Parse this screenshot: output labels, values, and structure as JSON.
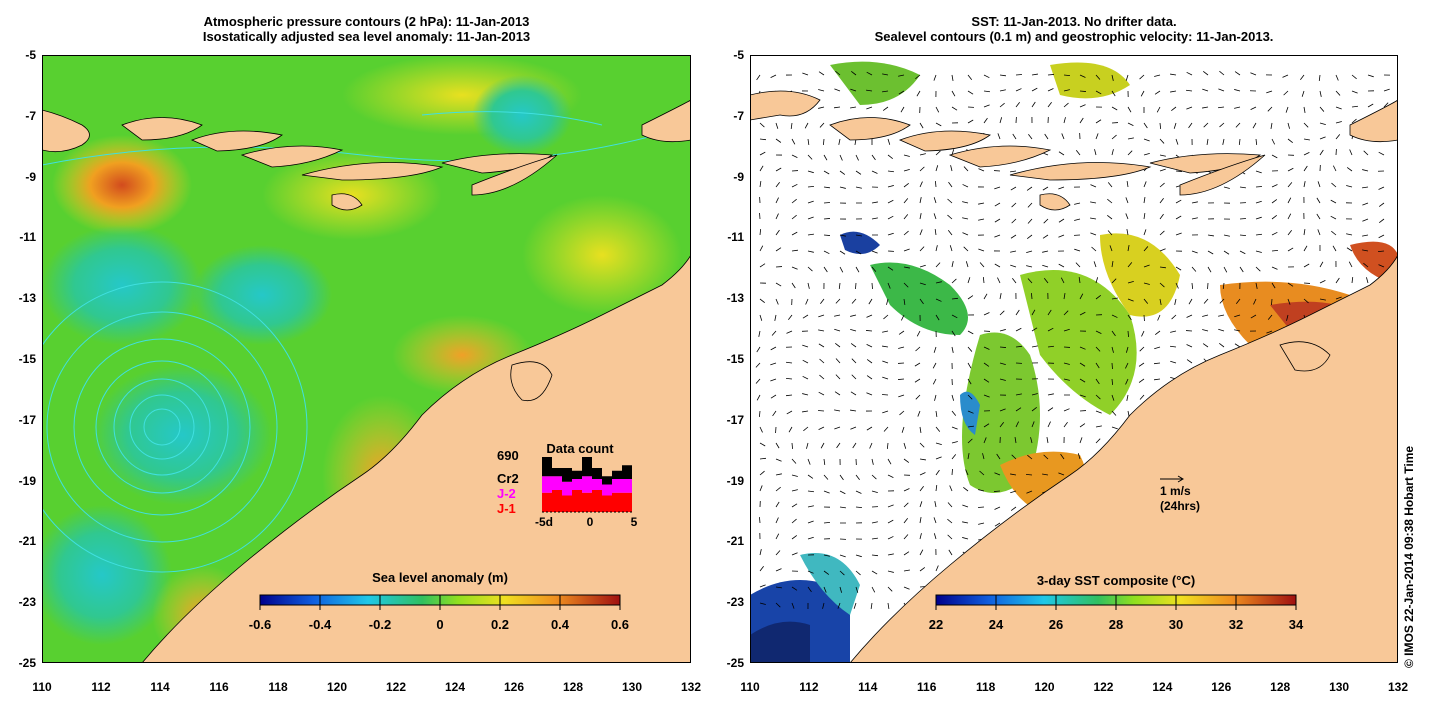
{
  "left_panel": {
    "title_line1": "Atmospheric pressure contours (2 hPa): 11-Jan-2013",
    "title_line2": "Isostatically adjusted sea level anomaly: 11-Jan-2013",
    "colorbar_title": "Sea level anomaly (m)",
    "colorbar_ticks": [
      "-0.6",
      "-0.4",
      "-0.2",
      "0",
      "0.2",
      "0.4",
      "0.6"
    ],
    "data_count": {
      "title": "Data count",
      "total": "690",
      "legend": [
        {
          "label": "Cr2",
          "color": "#000000"
        },
        {
          "label": "J-2",
          "color": "#ff00ff"
        },
        {
          "label": "J-1",
          "color": "#ff0000"
        }
      ],
      "x_ticks": [
        "-5d",
        "0",
        "5"
      ],
      "bars": [
        {
          "j1": 0.35,
          "j2": 0.3,
          "cr2": 0.35
        },
        {
          "j1": 0.4,
          "j2": 0.25,
          "cr2": 0.15
        },
        {
          "j1": 0.3,
          "j2": 0.25,
          "cr2": 0.25
        },
        {
          "j1": 0.4,
          "j2": 0.2,
          "cr2": 0.15
        },
        {
          "j1": 0.35,
          "j2": 0.3,
          "cr2": 0.35
        },
        {
          "j1": 0.4,
          "j2": 0.2,
          "cr2": 0.2
        },
        {
          "j1": 0.3,
          "j2": 0.2,
          "cr2": 0.15
        },
        {
          "j1": 0.35,
          "j2": 0.25,
          "cr2": 0.15
        },
        {
          "j1": 0.35,
          "j2": 0.25,
          "cr2": 0.25
        }
      ]
    }
  },
  "right_panel": {
    "title_line1": "SST: 11-Jan-2013. No drifter data.",
    "title_line2": "Sealevel contours (0.1 m) and geostrophic velocity: 11-Jan-2013.",
    "colorbar_title": "3-day SST composite (°C)",
    "colorbar_ticks": [
      "22",
      "24",
      "26",
      "28",
      "30",
      "32",
      "34"
    ],
    "velocity_scale_label": "1 m/s",
    "velocity_scale_sub": "(24hrs)"
  },
  "axes": {
    "y_ticks": [
      "-5",
      "-7",
      "-9",
      "-11",
      "-13",
      "-15",
      "-17",
      "-19",
      "-21",
      "-23",
      "-25"
    ],
    "x_ticks": [
      "110",
      "112",
      "114",
      "116",
      "118",
      "120",
      "122",
      "124",
      "126",
      "128",
      "130",
      "132"
    ]
  },
  "credit": "© IMOS 22-Jan-2014 09:38 Hobart Time",
  "colors": {
    "land": "#f8c898",
    "sla_ocean": "#5ad22e",
    "contour": "#40e0e0",
    "frame": "#000000"
  }
}
